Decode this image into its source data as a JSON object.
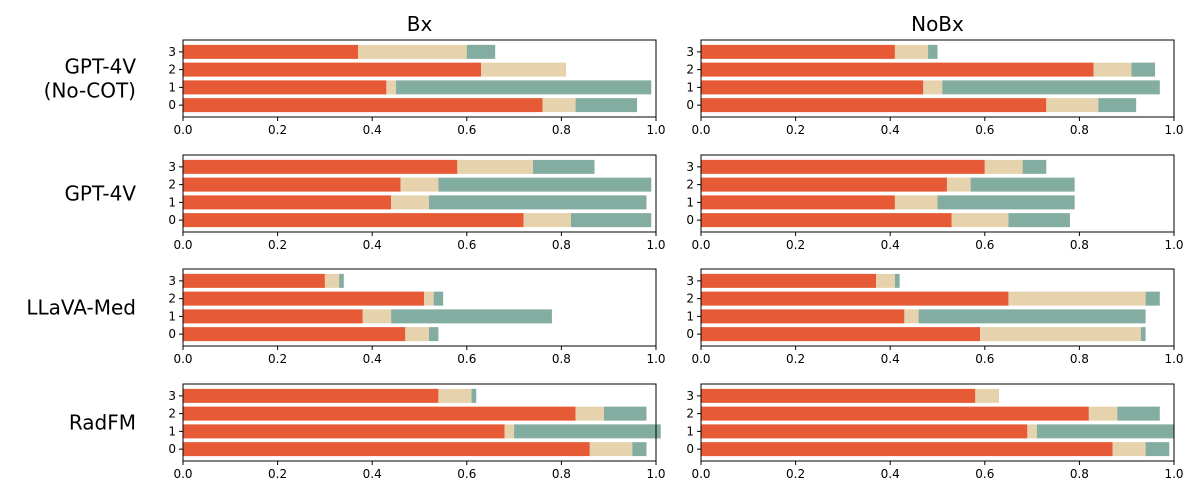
{
  "chart_data": {
    "type": "bar",
    "orientation": "horizontal",
    "stacked": true,
    "columns": [
      "Bx",
      "NoBx"
    ],
    "rows": [
      "GPT-4V\n(No-COT)",
      "GPT-4V",
      "LLaVA-Med",
      "RadFM"
    ],
    "categories": [
      "0",
      "1",
      "2",
      "3"
    ],
    "xlim": [
      0,
      1
    ],
    "xticks": [
      "0.0",
      "0.2",
      "0.4",
      "0.6",
      "0.8",
      "1.0"
    ],
    "series_colors": [
      "#E65A35",
      "#E6D3AD",
      "#84ADA1"
    ],
    "panels": [
      {
        "row": 0,
        "col": 0,
        "series": [
          {
            "values": [
              0.76,
              0.43,
              0.63,
              0.37
            ]
          },
          {
            "values": [
              0.07,
              0.02,
              0.18,
              0.23
            ]
          },
          {
            "values": [
              0.13,
              0.54,
              0.0,
              0.06
            ]
          }
        ]
      },
      {
        "row": 0,
        "col": 1,
        "series": [
          {
            "values": [
              0.73,
              0.47,
              0.83,
              0.41
            ]
          },
          {
            "values": [
              0.11,
              0.04,
              0.08,
              0.07
            ]
          },
          {
            "values": [
              0.08,
              0.46,
              0.05,
              0.02
            ]
          }
        ]
      },
      {
        "row": 1,
        "col": 0,
        "series": [
          {
            "values": [
              0.72,
              0.44,
              0.46,
              0.58
            ]
          },
          {
            "values": [
              0.1,
              0.08,
              0.08,
              0.16
            ]
          },
          {
            "values": [
              0.17,
              0.46,
              0.45,
              0.13
            ]
          }
        ]
      },
      {
        "row": 1,
        "col": 1,
        "series": [
          {
            "values": [
              0.53,
              0.41,
              0.52,
              0.6
            ]
          },
          {
            "values": [
              0.12,
              0.09,
              0.05,
              0.08
            ]
          },
          {
            "values": [
              0.13,
              0.29,
              0.22,
              0.05
            ]
          }
        ]
      },
      {
        "row": 2,
        "col": 0,
        "series": [
          {
            "values": [
              0.47,
              0.38,
              0.51,
              0.3
            ]
          },
          {
            "values": [
              0.05,
              0.06,
              0.02,
              0.03
            ]
          },
          {
            "values": [
              0.02,
              0.34,
              0.02,
              0.01
            ]
          }
        ]
      },
      {
        "row": 2,
        "col": 1,
        "series": [
          {
            "values": [
              0.59,
              0.43,
              0.65,
              0.37
            ]
          },
          {
            "values": [
              0.34,
              0.03,
              0.29,
              0.04
            ]
          },
          {
            "values": [
              0.01,
              0.48,
              0.03,
              0.01
            ]
          }
        ]
      },
      {
        "row": 3,
        "col": 0,
        "series": [
          {
            "values": [
              0.86,
              0.68,
              0.83,
              0.54
            ]
          },
          {
            "values": [
              0.09,
              0.02,
              0.06,
              0.07
            ]
          },
          {
            "values": [
              0.03,
              0.31,
              0.09,
              0.01
            ]
          }
        ]
      },
      {
        "row": 3,
        "col": 1,
        "series": [
          {
            "values": [
              0.87,
              0.69,
              0.82,
              0.58
            ]
          },
          {
            "values": [
              0.07,
              0.02,
              0.06,
              0.05
            ]
          },
          {
            "values": [
              0.05,
              0.29,
              0.09,
              0.0
            ]
          }
        ]
      }
    ]
  }
}
